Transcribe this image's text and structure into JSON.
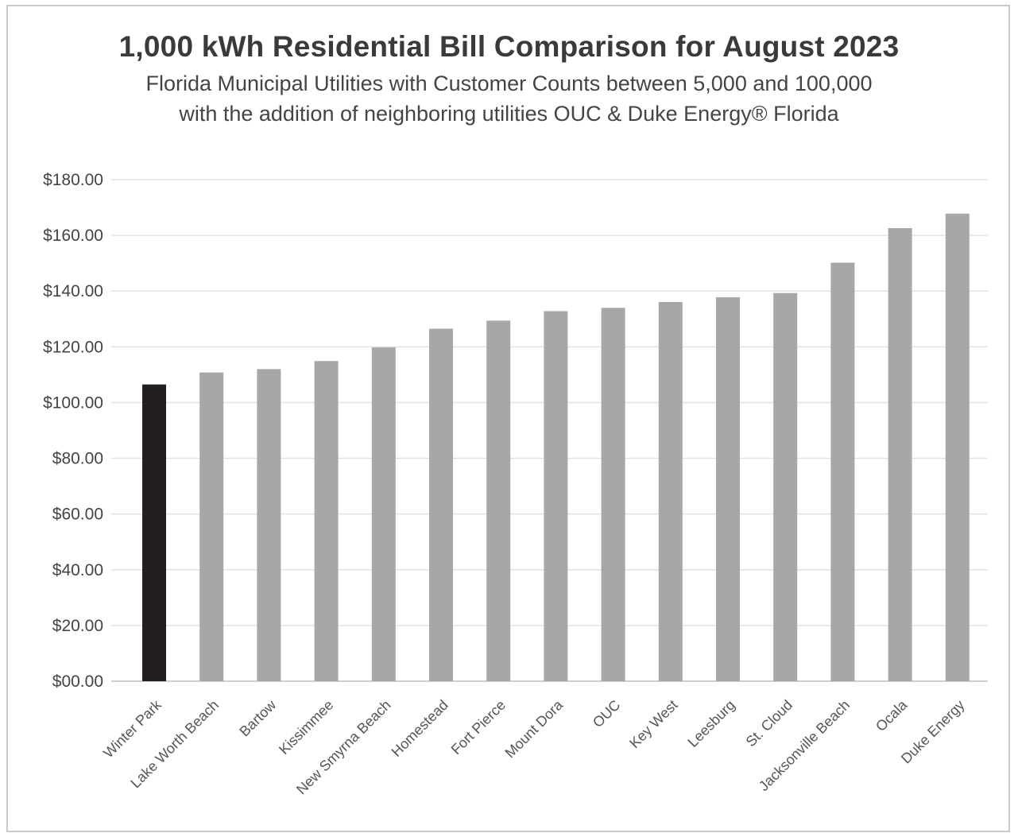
{
  "chart_data": {
    "type": "bar",
    "title": "1,000 kWh Residential Bill Comparison for August 2023",
    "subtitle_lines": [
      "Florida Municipal Utilities with Customer Counts between 5,000 and 100,000",
      "with the addition of neighboring utilities OUC & Duke Energy® Florida"
    ],
    "xlabel": "",
    "ylabel": "",
    "ylim": [
      0,
      180
    ],
    "yticks": [
      {
        "value": 0,
        "label": "$00.00"
      },
      {
        "value": 20,
        "label": "$20.00"
      },
      {
        "value": 40,
        "label": "$40.00"
      },
      {
        "value": 60,
        "label": "$60.00"
      },
      {
        "value": 80,
        "label": "$80.00"
      },
      {
        "value": 100,
        "label": "$100.00"
      },
      {
        "value": 120,
        "label": "$120.00"
      },
      {
        "value": 140,
        "label": "$140.00"
      },
      {
        "value": 160,
        "label": "$160.00"
      },
      {
        "value": 180,
        "label": "$180.00"
      }
    ],
    "grid": true,
    "legend": "none",
    "categories": [
      "Winter Park",
      "Lake Worth Beach",
      "Bartow",
      "Kissimmee",
      "New Smyrna Beach",
      "Homestead",
      "Fort Pierce",
      "Mount Dora",
      "OUC",
      "Key West",
      "Leesburg",
      "St. Cloud",
      "Jacksonville Beach",
      "Ocala",
      "Duke Energy"
    ],
    "values": [
      106.5,
      110.8,
      112.0,
      114.9,
      119.8,
      126.5,
      129.4,
      132.8,
      134.0,
      136.1,
      137.8,
      139.3,
      150.2,
      162.6,
      167.8
    ],
    "highlight_category": "Winter Park",
    "colors": {
      "highlight": "#231f20",
      "bar": "#a6a7a9",
      "grid": "#e2e2e2",
      "axis": "#cfcfcf"
    }
  }
}
